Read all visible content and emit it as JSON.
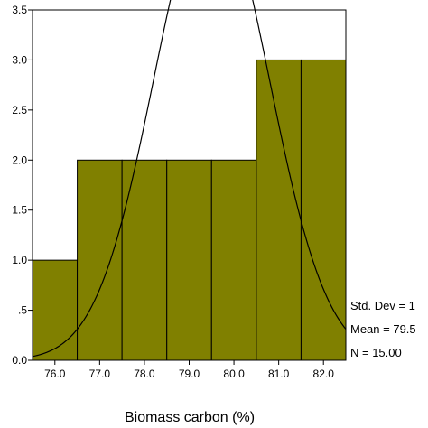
{
  "chart_data": {
    "type": "bar",
    "subtype": "histogram",
    "categories": [
      "76.0",
      "77.0",
      "78.0",
      "79.0",
      "80.0",
      "81.0",
      "82.0"
    ],
    "values": [
      1,
      2,
      2,
      2,
      2,
      3,
      3
    ],
    "xlabel": "Biomass carbon (%)",
    "ylabel": "",
    "xlim": [
      75.5,
      82.5
    ],
    "ylim": [
      0,
      3.5
    ],
    "y_ticks": [
      "0.0",
      ".5",
      "1.0",
      "1.5",
      "2.0",
      "2.5",
      "3.0",
      "3.5"
    ],
    "normal_curve": {
      "mean": 79.5,
      "std_dev": 1.29,
      "n": 15
    },
    "stats": {
      "std_dev_label": "Std. Dev = 1",
      "mean_label": "Mean = 79.5",
      "n_label": "N = 15.00"
    },
    "grid": false,
    "legend": "none"
  },
  "colors": {
    "bar_fill": "#808000",
    "bar_stroke": "#000000",
    "curve": "#000000",
    "axis": "#000000",
    "background": "#ffffff"
  }
}
